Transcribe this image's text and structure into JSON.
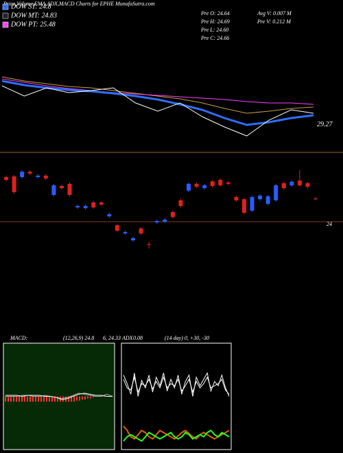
{
  "title": "Price,Volume,EMA,ADX,MACD Charts for EPHE MunafaSutra.com",
  "legend": [
    {
      "name": "DOW ST: 24.8",
      "color": "#2f6fff"
    },
    {
      "name": "DOW MT: 24.83",
      "color": "#222222"
    },
    {
      "name": "DOW PT: 25.48",
      "color": "#ff40ff"
    }
  ],
  "quote": [
    "Pre  O: 24.64",
    "Pre  H: 24.69",
    "Pre  L: 24.60",
    "Pre  C: 24.66",
    "Avg V: 0.007 M",
    "Pre  V: 0.212 M"
  ],
  "macd_label": "MACD:",
  "macd_params": "(12,26,9) 24.8",
  "macd_values": "6, 24.33",
  "adx_label": "ADX",
  "adx_value": "0.08",
  "adx_params": "(14 day) 0, +30, -30",
  "chart_data": [
    {
      "type": "line",
      "ylim": [
        27.7,
        33.7
      ],
      "yticks": [
        29.27
      ],
      "series": [
        {
          "color": "#c8a040",
          "values": [
            32.75,
            32.45,
            32.25,
            32.05,
            31.95,
            31.75,
            31.55,
            31.35,
            31.15,
            30.85,
            30.45,
            30.1,
            30.25,
            30.45,
            30.55
          ]
        },
        {
          "color": "#ff40ff",
          "values": [
            32.6,
            32.35,
            32.1,
            31.9,
            31.75,
            31.6,
            31.5,
            31.4,
            31.3,
            31.2,
            31.1,
            30.95,
            30.85,
            30.85,
            30.75
          ]
        },
        {
          "color": "#2f6fff",
          "values": [
            32.45,
            32.15,
            31.95,
            31.8,
            31.7,
            31.55,
            31.35,
            31.1,
            30.75,
            30.35,
            29.75,
            29.25,
            29.45,
            29.75,
            29.95
          ]
        },
        {
          "color": "#ffffff",
          "values": [
            32.1,
            31.35,
            31.95,
            31.6,
            31.75,
            31.95,
            30.85,
            30.25,
            30.85,
            29.85,
            29.1,
            28.45,
            29.6,
            30.35,
            30.1
          ]
        }
      ]
    },
    {
      "type": "candlestick",
      "ylim": [
        22.5,
        26.0
      ],
      "yticks": [
        24
      ],
      "grid": true,
      "up_color": "#2a5cff",
      "down_color": "#e02020",
      "open": [
        25.25,
        25.27,
        25.25,
        25.4,
        25.25,
        25.29,
        24.75,
        25.0,
        25.06,
        24.4,
        24.38,
        24.54,
        24.54,
        24.15,
        23.9,
        23.67,
        23.48,
        23.81,
        23.37,
        23.98,
        24.0,
        24.27,
        24.6,
        24.87,
        25.06,
        24.94,
        25.13,
        25.17,
        25.1,
        24.69,
        24.63,
        24.31,
        24.63,
        24.5,
        24.6,
        25.08,
        25.02,
        25.15,
        25.08,
        24.65
      ],
      "close": [
        25.17,
        24.83,
        25.4,
        25.35,
        25.29,
        25.21,
        25.02,
        24.94,
        24.75,
        24.44,
        24.44,
        24.4,
        24.48,
        24.21,
        23.75,
        23.71,
        23.54,
        23.67,
        23.35,
        24.02,
        24.06,
        24.13,
        24.44,
        25.06,
        24.98,
        25.02,
        25.0,
        25.02,
        25.06,
        24.6,
        24.25,
        24.69,
        24.73,
        24.71,
        25.02,
        24.94,
        25.12,
        25.02,
        24.98,
        24.63
      ],
      "high": [
        25.29,
        25.31,
        25.44,
        25.44,
        25.33,
        25.33,
        25.06,
        25.04,
        25.1,
        24.48,
        24.48,
        24.58,
        24.58,
        24.25,
        23.94,
        23.75,
        23.58,
        23.85,
        23.44,
        24.06,
        24.1,
        24.31,
        24.64,
        25.1,
        25.1,
        25.06,
        25.17,
        25.21,
        25.14,
        24.73,
        24.67,
        24.73,
        24.77,
        24.75,
        25.06,
        25.12,
        25.16,
        25.44,
        25.12,
        24.69
      ],
      "low": [
        25.13,
        24.79,
        25.21,
        25.31,
        25.21,
        25.17,
        24.71,
        24.9,
        24.71,
        24.36,
        24.34,
        24.36,
        24.44,
        24.11,
        23.71,
        23.63,
        23.44,
        23.63,
        23.25,
        23.94,
        23.96,
        24.09,
        24.4,
        24.83,
        24.94,
        24.9,
        24.96,
        24.98,
        25.02,
        24.56,
        24.21,
        24.27,
        24.59,
        24.46,
        24.56,
        24.9,
        24.98,
        24.98,
        24.94,
        24.6
      ]
    },
    {
      "type": "line",
      "ylim": [
        -0.5,
        0.5
      ],
      "background": "#062a06",
      "series": [
        {
          "color": "#ff3030",
          "style": "bar",
          "values": [
            -0.05,
            -0.05,
            -0.05,
            -0.05,
            -0.05,
            -0.05,
            -0.05,
            -0.05,
            -0.05,
            -0.05,
            -0.05,
            -0.05,
            -0.05,
            -0.05,
            -0.05,
            -0.05,
            -0.05,
            -0.05,
            -0.05,
            -0.05,
            -0.05,
            -0.05,
            -0.05,
            -0.05,
            -0.05,
            -0.05,
            -0.04,
            -0.04,
            -0.03,
            -0.03,
            -0.02,
            -0.02,
            -0.01,
            0,
            0,
            0,
            0,
            0,
            0,
            0
          ]
        },
        {
          "color": "#aaaaaa",
          "values": [
            0.0,
            0.0,
            0.0,
            0.01,
            0.01,
            0.0,
            0.0,
            0.01,
            0.0,
            -0.01,
            -0.02,
            -0.01,
            0.01,
            0.03,
            0.02,
            0.01,
            0.0,
            0.0,
            0.02,
            0.0
          ]
        },
        {
          "color": "#ffffff",
          "values": [
            0.01,
            0.01,
            0.01,
            0.0,
            0.01,
            0.01,
            0.01,
            0.0,
            0.0,
            -0.01,
            -0.03,
            -0.02,
            0.0,
            0.02,
            0.03,
            0.02,
            0.01,
            0.01,
            0.0,
            0.0
          ]
        }
      ]
    },
    {
      "type": "line",
      "ylim": [
        0,
        100
      ],
      "series": [
        {
          "color": "#ffffff",
          "values": [
            70,
            62,
            52,
            72,
            50,
            65,
            58,
            70,
            54,
            68,
            60,
            72,
            55,
            66,
            58,
            70,
            52,
            64,
            70,
            50,
            68,
            60,
            66,
            72,
            55,
            64,
            60,
            70,
            58,
            50
          ]
        },
        {
          "color": "#ffffff",
          "values": [
            66,
            58,
            56,
            68,
            54,
            62,
            60,
            66,
            57,
            64,
            58,
            68,
            58,
            62,
            60,
            66,
            55,
            60,
            66,
            54,
            64,
            58,
            62,
            68,
            58,
            60,
            62,
            66,
            56,
            52
          ]
        },
        {
          "color": "#e06000",
          "values": [
            22,
            18,
            12,
            10,
            14,
            18,
            16,
            12,
            10,
            14,
            18,
            16,
            14,
            12,
            10,
            13,
            16,
            18,
            15,
            12,
            10,
            14,
            16,
            14,
            12,
            10,
            12,
            14,
            16,
            18
          ]
        },
        {
          "color": "#20ff20",
          "values": [
            8,
            12,
            14,
            12,
            10,
            8,
            12,
            16,
            14,
            12,
            10,
            12,
            14,
            16,
            12,
            10,
            12,
            16,
            14,
            10,
            12,
            14,
            12,
            16,
            18,
            14,
            12,
            16,
            14,
            12
          ]
        }
      ]
    }
  ]
}
